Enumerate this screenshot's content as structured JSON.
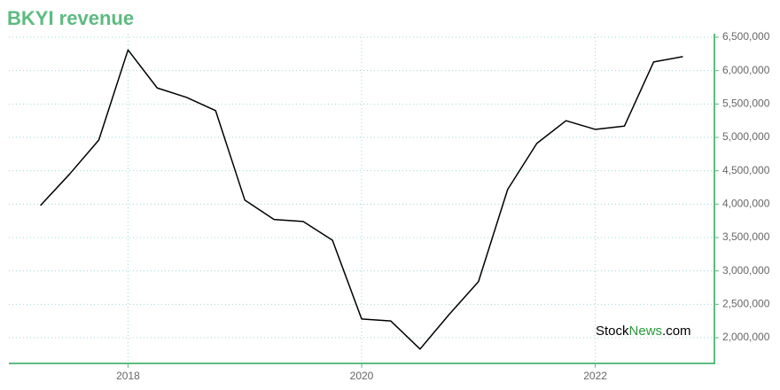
{
  "chart_data": {
    "type": "line",
    "title": "BKYI revenue",
    "watermark": {
      "prefix": "Stock",
      "highlight": "News",
      "suffix": ".com"
    },
    "x": [
      2017.25,
      2017.5,
      2017.75,
      2018,
      2018.25,
      2018.5,
      2018.75,
      2019,
      2019.25,
      2019.5,
      2019.75,
      2020,
      2020.25,
      2020.5,
      2020.75,
      2021,
      2021.25,
      2021.5,
      2021.75,
      2022,
      2022.25,
      2022.5,
      2022.75
    ],
    "series": [
      {
        "color": "#000000",
        "values": [
          3980000,
          4450000,
          4960000,
          6310000,
          5740000,
          5600000,
          5400000,
          4060000,
          3770000,
          3740000,
          3460000,
          2280000,
          2250000,
          1830000,
          2350000,
          2840000,
          4220000,
          4910000,
          5250000,
          5120000,
          5170000,
          6130000,
          6210000
        ]
      }
    ],
    "xlim": [
      2016.98,
      2023.02
    ],
    "xticks": [
      2018,
      2020,
      2022
    ],
    "ylim": [
      1615000,
      6500000
    ],
    "yticks": [
      {
        "value": 2000000,
        "label": "2,000,000"
      },
      {
        "value": 2500000,
        "label": "2,500,000"
      },
      {
        "value": 3000000,
        "label": "3,000,000"
      },
      {
        "value": 3500000,
        "label": "3,500,000"
      },
      {
        "value": 4000000,
        "label": "4,000,000"
      },
      {
        "value": 4500000,
        "label": "4,500,000"
      },
      {
        "value": 5000000,
        "label": "5,000,000"
      },
      {
        "value": 5500000,
        "label": "5,500,000"
      },
      {
        "value": 6000000,
        "label": "6,000,000"
      },
      {
        "value": 6500000,
        "label": "6,500,000"
      }
    ],
    "grid": true,
    "axis_color": "#5dbb80"
  }
}
